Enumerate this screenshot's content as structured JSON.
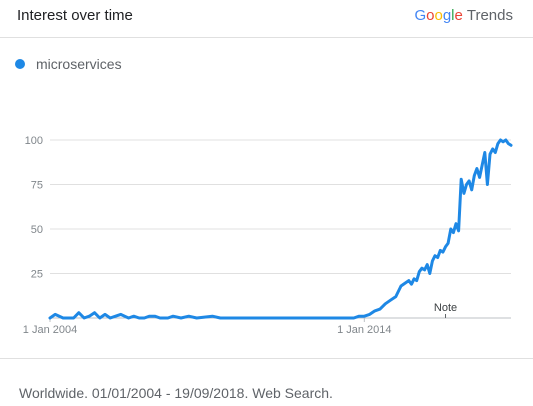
{
  "header": {
    "title": "Interest over time"
  },
  "brand": {
    "g1": "G",
    "o1": "o",
    "o2": "o",
    "g2": "g",
    "l": "l",
    "e": "e",
    "trends": "Trends"
  },
  "colors": {
    "series": "#1e88e5",
    "grid": "#e0e0e0",
    "axis_text": "#80868b"
  },
  "chart_data": {
    "type": "line",
    "title": "Interest over time",
    "xlabel": "",
    "ylabel": "",
    "ylim": [
      0,
      100
    ],
    "xlim": [
      "2004-01",
      "2018-09"
    ],
    "y_ticks": [
      "25",
      "50",
      "75",
      "100"
    ],
    "x_ticks": [
      {
        "value": "2004-01",
        "label": "1 Jan 2004"
      },
      {
        "value": "2014-01",
        "label": "1 Jan 2014"
      }
    ],
    "grid": true,
    "legend": "top-left",
    "annotations": [
      {
        "x": "2016-08",
        "label": "Note"
      }
    ],
    "series": [
      {
        "name": "microservices",
        "color": "#1e88e5",
        "points": [
          [
            "2004-01",
            0
          ],
          [
            "2004-03",
            2
          ],
          [
            "2004-06",
            0
          ],
          [
            "2004-10",
            0
          ],
          [
            "2004-12",
            3
          ],
          [
            "2005-02",
            0
          ],
          [
            "2005-04",
            1
          ],
          [
            "2005-06",
            3
          ],
          [
            "2005-08",
            0
          ],
          [
            "2005-10",
            2
          ],
          [
            "2005-12",
            0
          ],
          [
            "2006-02",
            1
          ],
          [
            "2006-04",
            2
          ],
          [
            "2006-07",
            0
          ],
          [
            "2006-09",
            1
          ],
          [
            "2006-11",
            0
          ],
          [
            "2007-01",
            0
          ],
          [
            "2007-03",
            1
          ],
          [
            "2007-05",
            1
          ],
          [
            "2007-07",
            0
          ],
          [
            "2007-10",
            0
          ],
          [
            "2007-12",
            1
          ],
          [
            "2008-03",
            0
          ],
          [
            "2008-06",
            1
          ],
          [
            "2008-09",
            0
          ],
          [
            "2009-03",
            1
          ],
          [
            "2009-06",
            0
          ],
          [
            "2010-01",
            0
          ],
          [
            "2011-01",
            0
          ],
          [
            "2012-01",
            0
          ],
          [
            "2013-01",
            0
          ],
          [
            "2013-09",
            0
          ],
          [
            "2013-11",
            1
          ],
          [
            "2014-01",
            1
          ],
          [
            "2014-03",
            2
          ],
          [
            "2014-05",
            4
          ],
          [
            "2014-07",
            5
          ],
          [
            "2014-09",
            8
          ],
          [
            "2014-11",
            10
          ],
          [
            "2015-01",
            12
          ],
          [
            "2015-03",
            18
          ],
          [
            "2015-05",
            20
          ],
          [
            "2015-06",
            21
          ],
          [
            "2015-07",
            19
          ],
          [
            "2015-08",
            22
          ],
          [
            "2015-09",
            21
          ],
          [
            "2015-10",
            26
          ],
          [
            "2015-11",
            28
          ],
          [
            "2015-12",
            27
          ],
          [
            "2016-01",
            30
          ],
          [
            "2016-02",
            25
          ],
          [
            "2016-03",
            32
          ],
          [
            "2016-04",
            35
          ],
          [
            "2016-05",
            34
          ],
          [
            "2016-06",
            38
          ],
          [
            "2016-07",
            37
          ],
          [
            "2016-08",
            40
          ],
          [
            "2016-09",
            42
          ],
          [
            "2016-10",
            50
          ],
          [
            "2016-11",
            48
          ],
          [
            "2016-12",
            53
          ],
          [
            "2017-01",
            49
          ],
          [
            "2017-02",
            78
          ],
          [
            "2017-03",
            70
          ],
          [
            "2017-04",
            75
          ],
          [
            "2017-05",
            77
          ],
          [
            "2017-06",
            72
          ],
          [
            "2017-07",
            80
          ],
          [
            "2017-08",
            84
          ],
          [
            "2017-09",
            79
          ],
          [
            "2017-10",
            86
          ],
          [
            "2017-11",
            93
          ],
          [
            "2017-12",
            75
          ],
          [
            "2018-01",
            92
          ],
          [
            "2018-02",
            95
          ],
          [
            "2018-03",
            93
          ],
          [
            "2018-04",
            98
          ],
          [
            "2018-05",
            100
          ],
          [
            "2018-06",
            99
          ],
          [
            "2018-07",
            100
          ],
          [
            "2018-08",
            98
          ],
          [
            "2018-09",
            97
          ]
        ]
      }
    ]
  },
  "footer": {
    "text": "Worldwide. 01/01/2004 - 19/09/2018. Web Search."
  }
}
